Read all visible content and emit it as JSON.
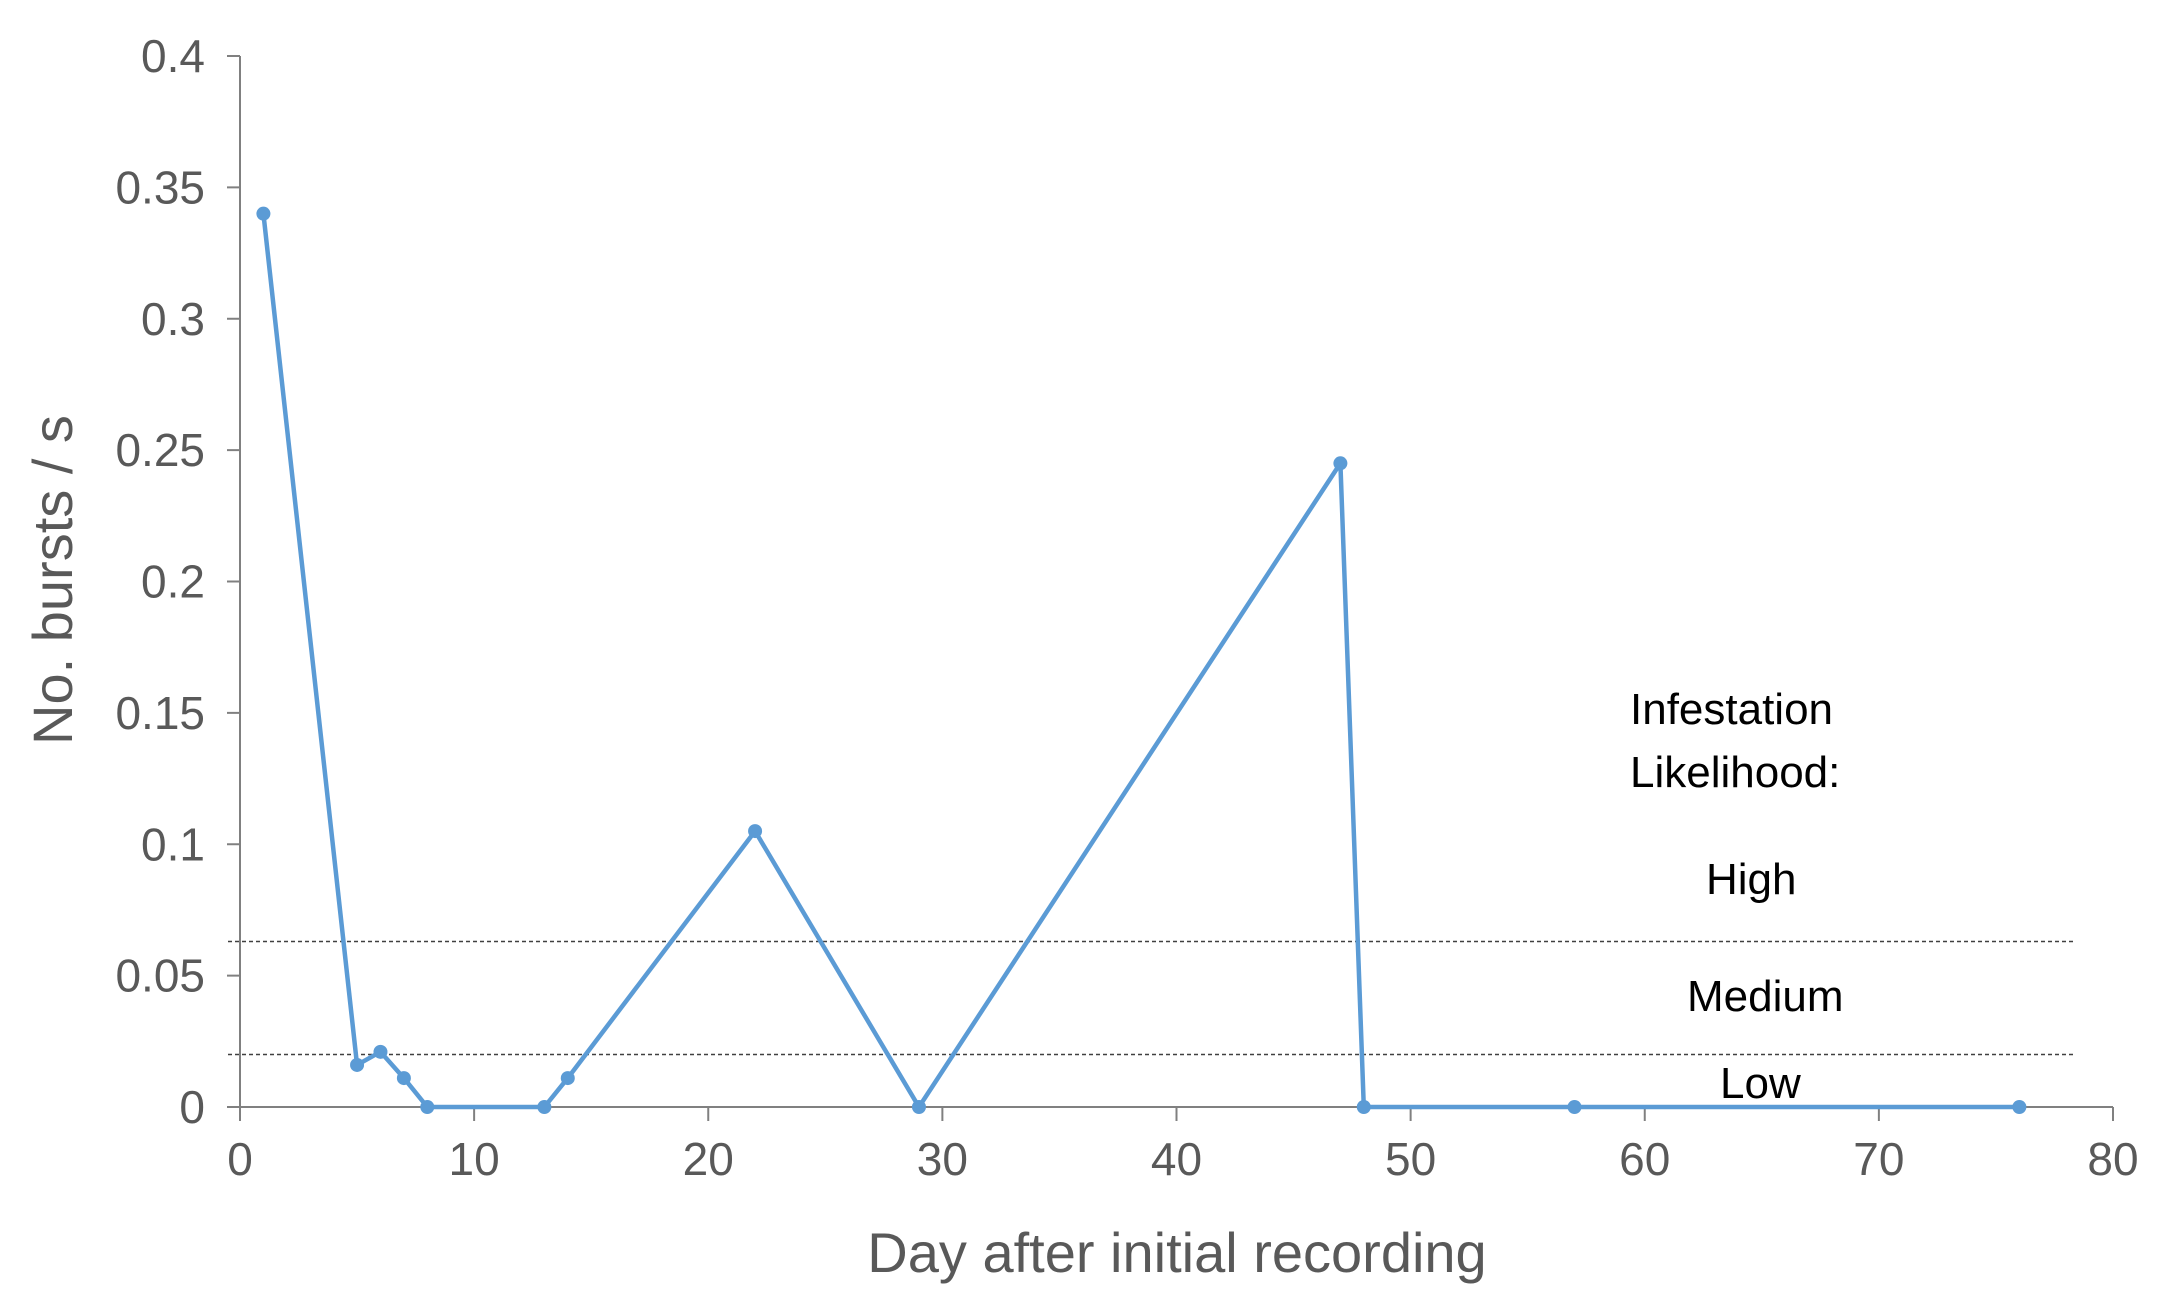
{
  "chart_data": {
    "type": "line",
    "xlabel": "Day after initial recording",
    "ylabel": "No. bursts  / s",
    "xlim": [
      0,
      80
    ],
    "ylim": [
      0,
      0.4
    ],
    "x_ticks": [
      0,
      10,
      20,
      30,
      40,
      50,
      60,
      70,
      80
    ],
    "x_tick_labels": [
      "0",
      "10",
      "20",
      "30",
      "40",
      "50",
      "60",
      "70",
      "80"
    ],
    "y_ticks": [
      0,
      0.05,
      0.1,
      0.15,
      0.2,
      0.25,
      0.3,
      0.35,
      0.4
    ],
    "y_tick_labels": [
      "0",
      "0.05",
      "0.1",
      "0.15",
      "0.2",
      "0.25",
      "0.3",
      "0.35",
      "0.4"
    ],
    "grid": false,
    "legend": "none",
    "series": [
      {
        "color": "#5b9bd5",
        "x": [
          1,
          5,
          6,
          7,
          8,
          13,
          14,
          22,
          29,
          47,
          48,
          57,
          76
        ],
        "y": [
          0.34,
          0.016,
          0.021,
          0.011,
          0.0,
          0.0,
          0.011,
          0.105,
          0.0,
          0.245,
          0.0,
          0.0,
          0.0
        ]
      }
    ],
    "thresholds": [
      {
        "y": 0.063,
        "style": "dashed",
        "color": "#404040"
      },
      {
        "y": 0.02,
        "style": "dashed",
        "color": "#404040"
      }
    ],
    "annotations": {
      "title_line1": "Infestation",
      "title_line2": "Likelihood:",
      "high": "High",
      "medium": "Medium",
      "low": "Low"
    }
  }
}
